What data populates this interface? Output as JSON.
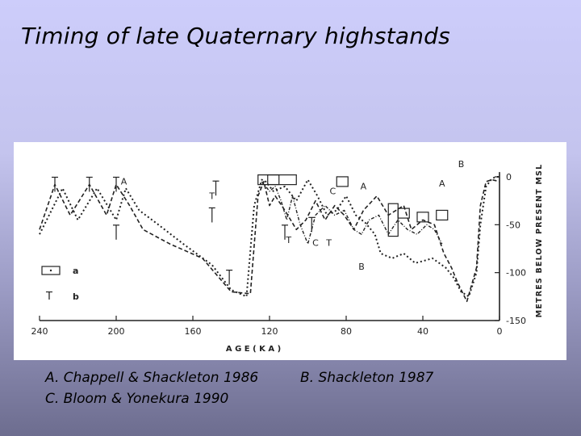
{
  "slide": {
    "title": "Timing of late Quaternary highstands",
    "captions": {
      "a": "A.  Chappell & Shackleton 1986",
      "b": "B. Shackleton 1987",
      "c": "C.  Bloom & Yonekura 1990"
    }
  },
  "chart_data": {
    "type": "line",
    "title": "",
    "xlabel": "A G E     ( K A )",
    "ylabel": "METRES BELOW PRESENT MSL",
    "xlim": [
      240,
      0
    ],
    "ylim": [
      -150,
      0
    ],
    "x_ticks": [
      240,
      200,
      160,
      120,
      80,
      40,
      0
    ],
    "y_ticks": [
      0,
      -50,
      -100,
      -150
    ],
    "legend": [
      {
        "symbol": "box",
        "label": "a"
      },
      {
        "symbol": "T",
        "label": "b"
      }
    ],
    "series": [
      {
        "name": "A",
        "x": [
          240,
          232,
          224,
          214,
          205,
          200,
          193,
          186,
          172,
          155,
          140,
          130,
          126,
          123,
          120,
          117,
          112,
          106,
          101,
          96,
          91,
          86,
          81,
          76,
          71,
          64,
          58,
          50,
          46,
          40,
          34,
          29,
          25,
          22,
          17,
          12,
          10,
          7,
          4,
          2,
          0
        ],
        "y": [
          -55,
          -8,
          -40,
          -8,
          -40,
          -8,
          -30,
          -55,
          -70,
          -85,
          -120,
          -122,
          -20,
          -5,
          -30,
          -20,
          -35,
          -55,
          -45,
          -25,
          -45,
          -30,
          -40,
          -55,
          -35,
          -20,
          -40,
          -30,
          -55,
          -45,
          -50,
          -80,
          -95,
          -110,
          -130,
          -95,
          -30,
          -5,
          -3,
          -4,
          -5
        ]
      },
      {
        "name": "B",
        "x": [
          240,
          228,
          220,
          210,
          200,
          195,
          188,
          178,
          165,
          150,
          140,
          132,
          128,
          124,
          122,
          118,
          112,
          106,
          100,
          95,
          90,
          85,
          80,
          75,
          70,
          65,
          62,
          56,
          50,
          44,
          40,
          35,
          28,
          24,
          20,
          16,
          12,
          10,
          7,
          4,
          2,
          0
        ],
        "y": [
          -60,
          -12,
          -45,
          -12,
          -45,
          -12,
          -35,
          -50,
          -70,
          -92,
          -118,
          -125,
          -30,
          -3,
          -5,
          -15,
          -10,
          -25,
          -3,
          -20,
          -40,
          -35,
          -20,
          -40,
          -48,
          -60,
          -80,
          -85,
          -80,
          -90,
          -88,
          -85,
          -95,
          -105,
          -120,
          -125,
          -100,
          -50,
          -10,
          -2,
          0,
          0
        ]
      },
      {
        "name": "C",
        "x": [
          124,
          120,
          117,
          114,
          111,
          108,
          104,
          100,
          96,
          91,
          86,
          81,
          76,
          72,
          68,
          63,
          58,
          53,
          48,
          43,
          38,
          34,
          30
        ],
        "y": [
          -5,
          -15,
          -10,
          -25,
          -45,
          -20,
          -50,
          -70,
          -40,
          -30,
          -40,
          -35,
          -55,
          -60,
          -45,
          -40,
          -60,
          -45,
          -55,
          -60,
          -50,
          -55,
          -70
        ]
      }
    ],
    "annotations": [
      {
        "text": "A",
        "x": 196,
        "y": -8
      },
      {
        "text": "B",
        "x": 20,
        "y": 10
      },
      {
        "text": "A",
        "x": 30,
        "y": -10
      },
      {
        "text": "T",
        "x": 150,
        "y": -23
      },
      {
        "text": "T",
        "x": 110,
        "y": -69
      },
      {
        "text": "C",
        "x": 96,
        "y": -72
      },
      {
        "text": "T",
        "x": 89,
        "y": -72
      },
      {
        "text": "C",
        "x": 87,
        "y": -18
      },
      {
        "text": "A",
        "x": 71,
        "y": -13
      },
      {
        "text": "B",
        "x": 72,
        "y": -97
      }
    ],
    "grid": false
  }
}
